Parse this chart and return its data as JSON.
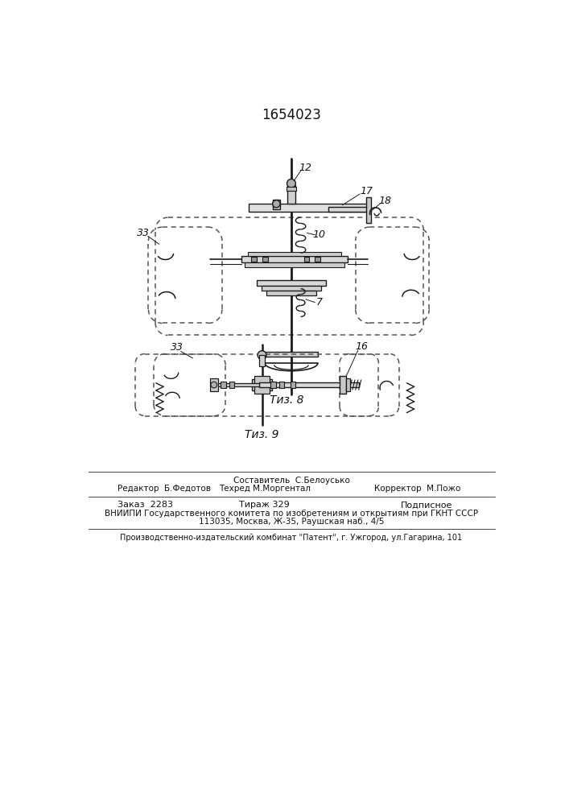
{
  "title": "1654023",
  "bg_color": "#ffffff",
  "line_color": "#1a1a1a",
  "fig8_caption": "Τиз. 8",
  "fig9_caption": "Τиз. 9",
  "footer_line1_col1": "Редактор  Б.Федотов",
  "footer_line0_col2": "Составитель  С.Белоусько",
  "footer_line1_col2": "Техред М.Моргентал",
  "footer_line1_col3": "Корректор  М.Пожо",
  "order_text": "Заказ  2283",
  "tirazh_text": "Тираж 329",
  "podpisnoe_text": "Подписное",
  "vniipi_text": "ВНИИПИ Государственного комитета по изобретениям и открытиям при ГКНТ СССР",
  "addr_text": "113035, Москва, Ж-35, Раушская наб., 4/5",
  "prod_text": "Производственно-издательский комбинат \"Патент\", г. Ужгород, ул.Гагарина, 101"
}
